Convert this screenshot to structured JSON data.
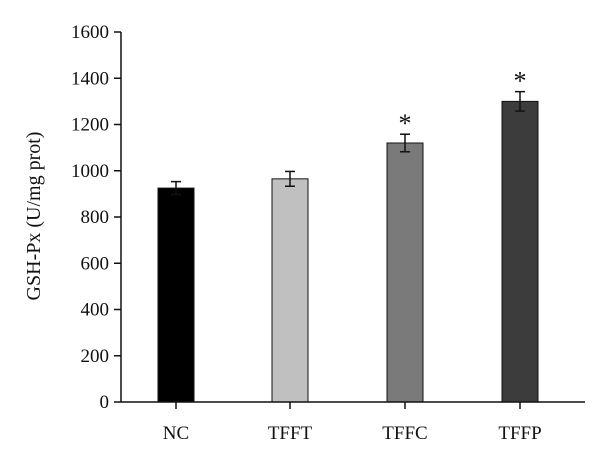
{
  "chart_data": {
    "type": "bar",
    "title": "",
    "xlabel": "",
    "ylabel": "GSH-Px (U/mg prot)",
    "ylim": [
      0,
      1600
    ],
    "yticks": [
      0,
      200,
      400,
      600,
      800,
      1000,
      1200,
      1400,
      1600
    ],
    "categories": [
      "NC",
      "TFFT",
      "TFFC",
      "TFFP"
    ],
    "values": [
      925,
      965,
      1120,
      1300
    ],
    "errors": [
      28,
      32,
      38,
      42
    ],
    "significance": [
      "",
      "",
      "*",
      "*"
    ],
    "colors": [
      "#000000",
      "#c0c0c0",
      "#7a7a7a",
      "#3c3c3c"
    ],
    "grid": false,
    "legend": "none"
  }
}
